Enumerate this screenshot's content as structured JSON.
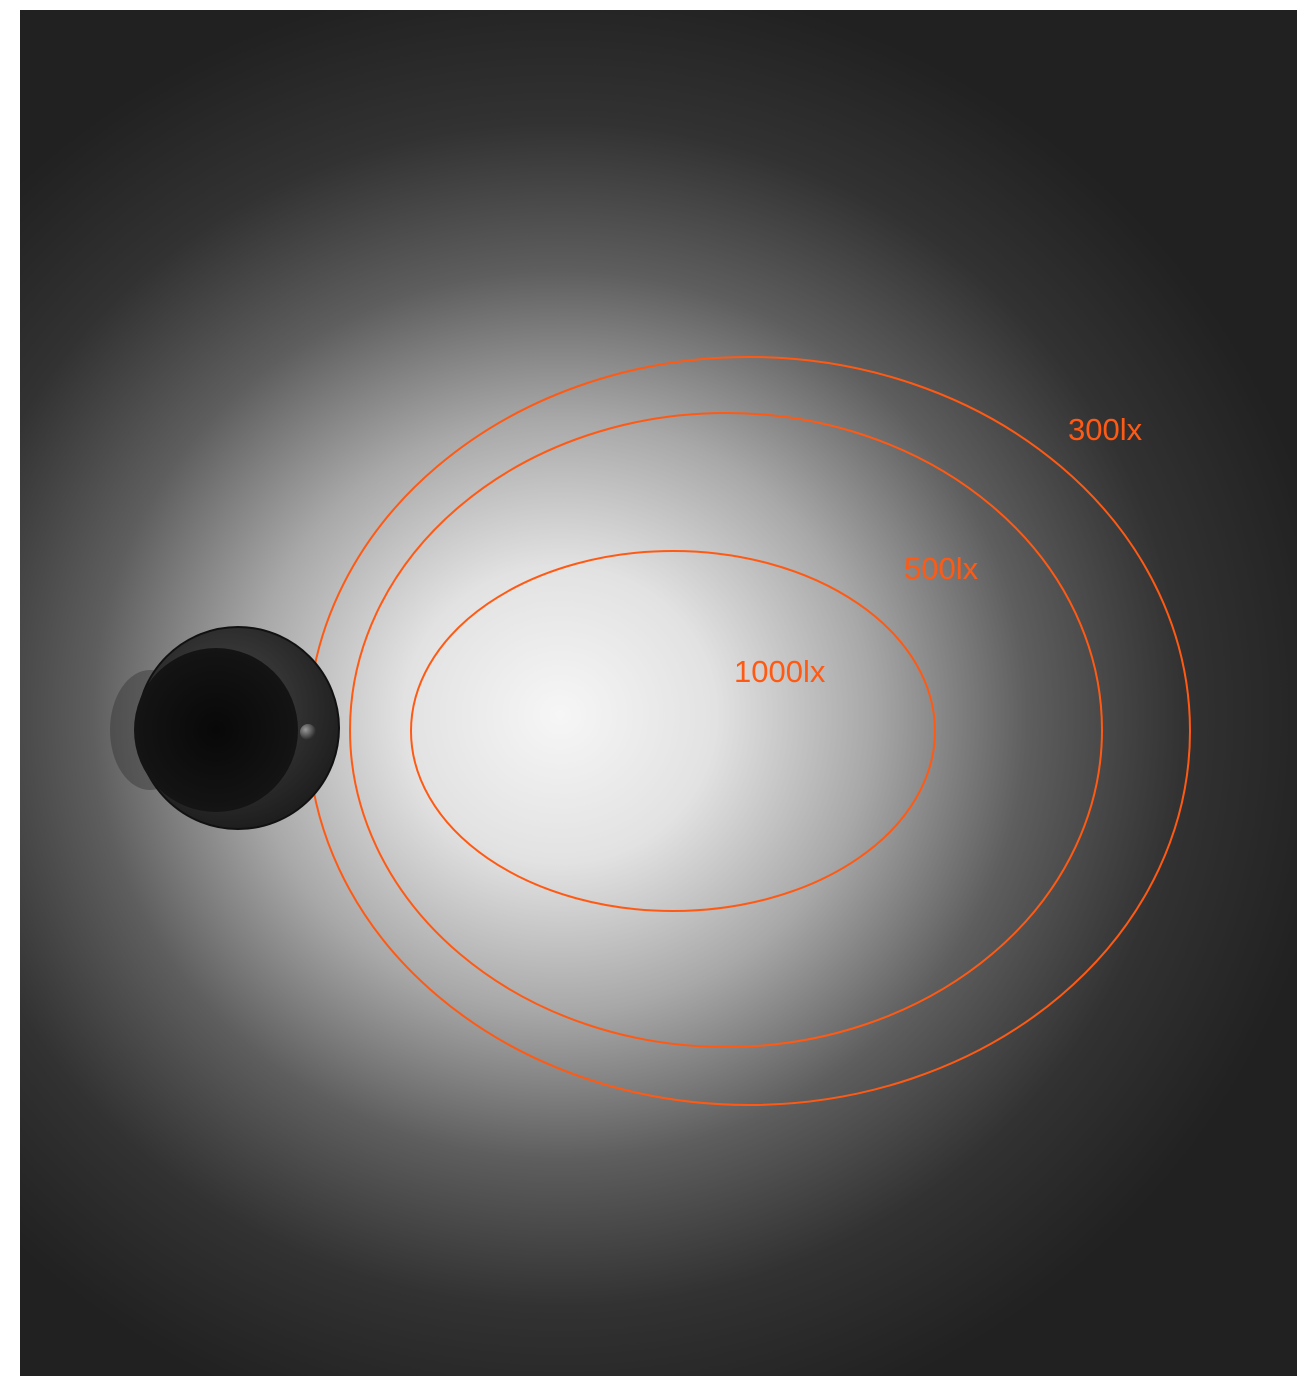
{
  "contours": [
    {
      "label": "300lx"
    },
    {
      "label": "500lx"
    },
    {
      "label": "1000lx"
    }
  ]
}
